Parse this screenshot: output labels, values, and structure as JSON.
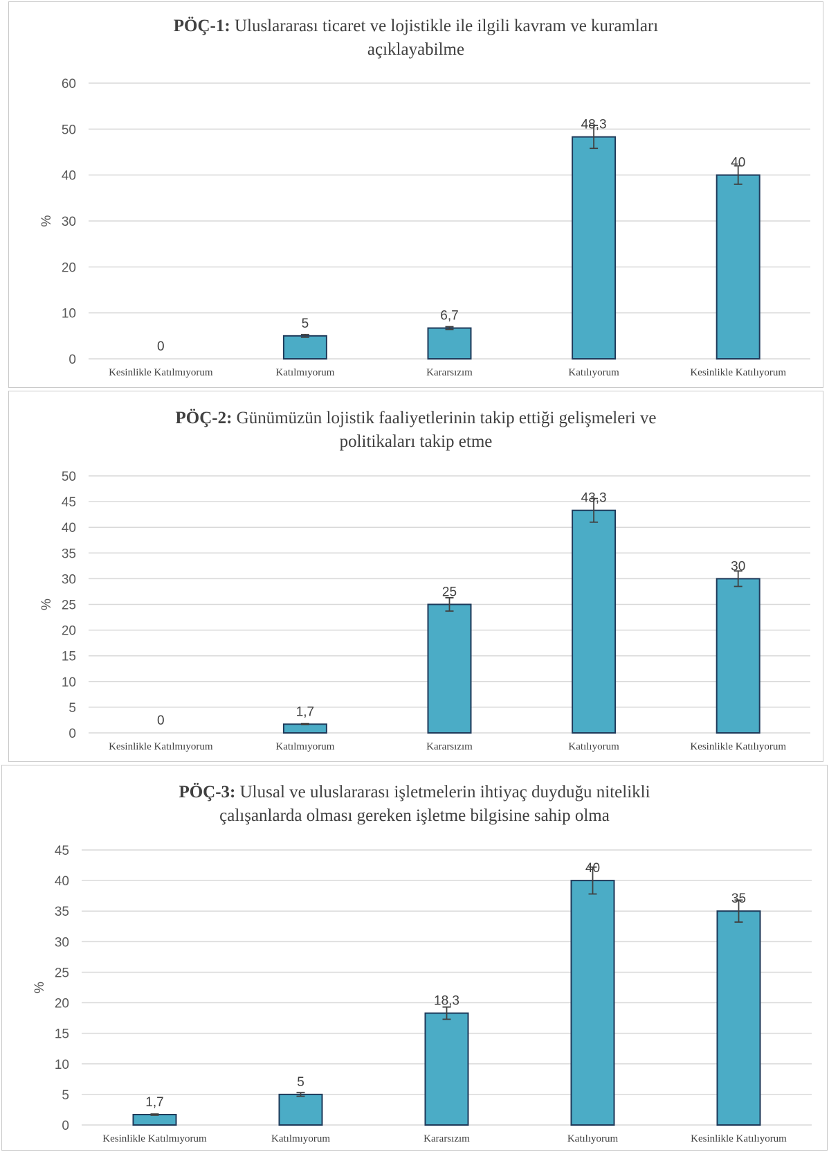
{
  "colors": {
    "bar": "#4bacc6",
    "bar_stroke": "#1f3a5a",
    "grid": "#d9d9d9",
    "errorbar": "#404040"
  },
  "chart_data": [
    {
      "type": "bar",
      "title_prefix": "PÖÇ-1:",
      "title_line1": "Uluslararası ticaret ve lojistikle ile ilgili kavram ve kuramları",
      "title_line2": "açıklayabilme",
      "ylabel": "%",
      "ylim": [
        0,
        60
      ],
      "yticks": [
        0,
        10,
        20,
        30,
        40,
        50,
        60
      ],
      "grid": true,
      "categories": [
        "Kesinlikle Katılmıyorum",
        "Katılmıyorum",
        "Kararsızım",
        "Katılıyorum",
        "Kesinlikle Katılıyorum"
      ],
      "values": [
        0,
        5,
        6.7,
        48.3,
        40
      ],
      "value_labels": [
        "0",
        "5",
        "6,7",
        "48,3",
        "40"
      ],
      "error": [
        0,
        0.3,
        0.3,
        2.5,
        2.0
      ]
    },
    {
      "type": "bar",
      "title_prefix": "PÖÇ-2:",
      "title_line1": "Günümüzün lojistik faaliyetlerinin takip ettiği gelişmeleri ve",
      "title_line2": "politikaları takip etme",
      "ylabel": "%",
      "ylim": [
        0,
        50
      ],
      "yticks": [
        0,
        5,
        10,
        15,
        20,
        25,
        30,
        35,
        40,
        45,
        50
      ],
      "grid": true,
      "categories": [
        "Kesinlikle Katılmıyorum",
        "Katılmıyorum",
        "Kararsızım",
        "Katılıyorum",
        "Kesinlikle Katılıyorum"
      ],
      "values": [
        0,
        1.7,
        25,
        43.3,
        30
      ],
      "value_labels": [
        "0",
        "1,7",
        "25",
        "43,3",
        "30"
      ],
      "error": [
        0,
        0.1,
        1.3,
        2.3,
        1.5
      ]
    },
    {
      "type": "bar",
      "title_prefix": "PÖÇ-3:",
      "title_line1": "Ulusal ve uluslararası işletmelerin ihtiyaç duyduğu nitelikli",
      "title_line2": "çalışanlarda olması gereken işletme bilgisine sahip olma",
      "ylabel": "%",
      "ylim": [
        0,
        45
      ],
      "yticks": [
        0,
        5,
        10,
        15,
        20,
        25,
        30,
        35,
        40,
        45
      ],
      "grid": true,
      "categories": [
        "Kesinlikle Katılmıyorum",
        "Katılmıyorum",
        "Kararsızım",
        "Katılıyorum",
        "Kesinlikle Katılıyorum"
      ],
      "values": [
        1.7,
        5,
        18.3,
        40,
        35
      ],
      "value_labels": [
        "1,7",
        "5",
        "18,3",
        "40",
        "35"
      ],
      "error": [
        0.1,
        0.3,
        1.0,
        2.2,
        1.8
      ]
    }
  ]
}
